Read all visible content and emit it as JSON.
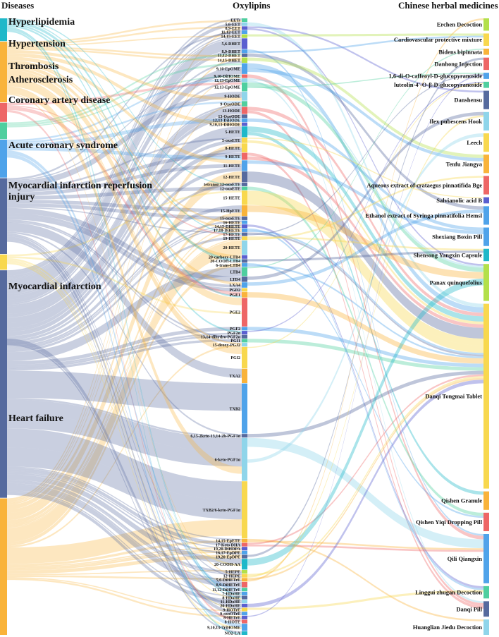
{
  "headers": {
    "diseases": "Diseases",
    "oxylipins": "Oxylipins",
    "medicines": "Chinese herbal medicines"
  },
  "colors": {
    "teal": "#1fb8c9",
    "orange": "#f9b33a",
    "red": "#ee6666",
    "green": "#4fcf9f",
    "blue": "#4fa3ea",
    "slate": "#566a9e",
    "yellow": "#f8d84e",
    "purple": "#5a5fd0",
    "lime": "#b3e04a",
    "lightblue": "#8fd5ea",
    "gray": "#7a879a"
  },
  "diseases": [
    {
      "name": "Hyperlipidemia",
      "color": "#1fb8c9",
      "weight": 3
    },
    {
      "name": "Hypertension",
      "color": "#f9b33a",
      "weight": 8
    },
    {
      "name": "Thrombosis",
      "color": "#ee6666",
      "weight": 2.5
    },
    {
      "name": "Atherosclerosis",
      "color": "#4fcf9f",
      "weight": 2.2
    },
    {
      "name": "Coronary artery disease",
      "color": "#4fa3ea",
      "weight": 5
    },
    {
      "name": "Acute coronary syndrome",
      "color": "#566a9e",
      "weight": 10
    },
    {
      "name": "Myocardial infarction reperfusion injury",
      "color": "#f8d84e",
      "weight": 2
    },
    {
      "name": "Myocardial infarction",
      "color": "#566a9e",
      "weight": 30
    },
    {
      "name": "Heart failure",
      "color": "#f9b33a",
      "weight": 18
    }
  ],
  "oxylipins": [
    {
      "name": "EETs",
      "color": "#4fcf9f",
      "weight": 1
    },
    {
      "name": "5,6-EET",
      "color": "#8fd5ea",
      "weight": 1
    },
    {
      "name": "8,9-EET",
      "color": "#5a5fd0",
      "weight": 1
    },
    {
      "name": "11,12-EET",
      "color": "#4fa3ea",
      "weight": 1
    },
    {
      "name": "14,15-EET",
      "color": "#b3e04a",
      "weight": 1
    },
    {
      "name": "5,6-DHET",
      "color": "#5a5fd0",
      "weight": 3
    },
    {
      "name": "8,9-DHET",
      "color": "#4fa3ea",
      "weight": 1
    },
    {
      "name": "11,12-DHET",
      "color": "#566a9e",
      "weight": 1
    },
    {
      "name": "14,15-DHET",
      "color": "#b3e04a",
      "weight": 1.5
    },
    {
      "name": "9,10-EpOME",
      "color": "#4fa3ea",
      "weight": 3
    },
    {
      "name": "9,10-DiHOME",
      "color": "#ee6666",
      "weight": 1
    },
    {
      "name": "12,13-EpOME",
      "color": "#8fd5ea",
      "weight": 1
    },
    {
      "name": "12,13-EpOME",
      "color": "#4fcf9f",
      "weight": 2.5
    },
    {
      "name": "9-HODE",
      "color": "#8fd5ea",
      "weight": 2.5
    },
    {
      "name": "9-OxoODE",
      "color": "#4fcf9f",
      "weight": 1.5
    },
    {
      "name": "13-HODE",
      "color": "#ee6666",
      "weight": 2
    },
    {
      "name": "13-OxoODE",
      "color": "#566a9e",
      "weight": 1
    },
    {
      "name": "12,13-DiHODE",
      "color": "#4fa3ea",
      "weight": 1
    },
    {
      "name": "9,10,13-DiHODE",
      "color": "#5a5fd0",
      "weight": 1
    },
    {
      "name": "5-HETE",
      "color": "#1fb8c9",
      "weight": 3
    },
    {
      "name": "5-oxoETE",
      "color": "#f8d84e",
      "weight": 1.5
    },
    {
      "name": "8-HETE",
      "color": "#f8d84e",
      "weight": 2.5
    },
    {
      "name": "9-HETE",
      "color": "#ee6666",
      "weight": 2
    },
    {
      "name": "11-HETE",
      "color": "#4fa3ea",
      "weight": 3
    },
    {
      "name": "12-HETE",
      "color": "#566a9e",
      "weight": 3
    },
    {
      "name": "tetranor 12-oxoETE",
      "color": "#566a9e",
      "weight": 1
    },
    {
      "name": "12-oxoETE",
      "color": "#4fcf9f",
      "weight": 1
    },
    {
      "name": "15-HETE",
      "color": "#f8d84e",
      "weight": 4
    },
    {
      "name": "15-HpETE",
      "color": "#f9b33a",
      "weight": 3
    },
    {
      "name": "15-oxoETE",
      "color": "#566a9e",
      "weight": 1
    },
    {
      "name": "16-HETE",
      "color": "#4fa3ea",
      "weight": 1
    },
    {
      "name": "14,15-DHETE",
      "color": "#5a5fd0",
      "weight": 1
    },
    {
      "name": "17,18-DiHETE",
      "color": "#4fa3ea",
      "weight": 1
    },
    {
      "name": "17-HETE",
      "color": "#566a9e",
      "weight": 1
    },
    {
      "name": "19-HETE",
      "color": "#f8d84e",
      "weight": 1
    },
    {
      "name": "20-HETE",
      "color": "#8fd5ea",
      "weight": 4
    },
    {
      "name": "20-carboxy-LTB4",
      "color": "#5a5fd0",
      "weight": 1
    },
    {
      "name": "20-COOH-LTB4",
      "color": "#566a9e",
      "weight": 1
    },
    {
      "name": "6-trans-LTB4",
      "color": "#4fa3ea",
      "weight": 1
    },
    {
      "name": "LTB4",
      "color": "#4fcf9f",
      "weight": 2.5
    },
    {
      "name": "LTD4",
      "color": "#566a9e",
      "weight": 1.5
    },
    {
      "name": "LXA4",
      "color": "#4fa3ea",
      "weight": 1.5
    },
    {
      "name": "PGD2",
      "color": "#f8d84e",
      "weight": 1
    },
    {
      "name": "PGE1",
      "color": "#f9b33a",
      "weight": 1.5
    },
    {
      "name": "PGE2",
      "color": "#ee6666",
      "weight": 8
    },
    {
      "name": "PGF2",
      "color": "#4fa3ea",
      "weight": 1
    },
    {
      "name": "PGF2α",
      "color": "#5a5fd0",
      "weight": 1
    },
    {
      "name": "13,14-dihydro-PGF2α",
      "color": "#566a9e",
      "weight": 1
    },
    {
      "name": "PGI1",
      "color": "#4fcf9f",
      "weight": 1
    },
    {
      "name": "15-deoxy-PGJ2",
      "color": "#8fd5ea",
      "weight": 1
    },
    {
      "name": "PGI2",
      "color": "#f8d84e",
      "weight": 6
    },
    {
      "name": "TXA2",
      "color": "#f9b33a",
      "weight": 4
    },
    {
      "name": "TXB2",
      "color": "#4fa3ea",
      "weight": 14
    },
    {
      "name": "6,15-2keto-13,14-2h-PGF1α",
      "color": "#566a9e",
      "weight": 1
    },
    {
      "name": "6-keto-PGF1α",
      "color": "#8fd5ea",
      "weight": 12
    },
    {
      "name": "TXB2/6-keto-PGF1α",
      "color": "#f8d84e",
      "weight": 16
    },
    {
      "name": "14,15-EpETE",
      "color": "#f9b33a",
      "weight": 1
    },
    {
      "name": "17-Keto DHA",
      "color": "#ee6666",
      "weight": 1
    },
    {
      "name": "19,20-DiHDPA",
      "color": "#5a5fd0",
      "weight": 1
    },
    {
      "name": "16,17-EpDPE",
      "color": "#4fa3ea",
      "weight": 1
    },
    {
      "name": "19,20-EpDPE",
      "color": "#566a9e",
      "weight": 1
    },
    {
      "name": "20-COOH-AA",
      "color": "#1fb8c9",
      "weight": 3
    },
    {
      "name": "5-HEPE",
      "color": "#b3e04a",
      "weight": 1
    },
    {
      "name": "12-HEPE",
      "color": "#f8d84e",
      "weight": 1
    },
    {
      "name": "5,6-DiHETrE",
      "color": "#f9b33a",
      "weight": 1
    },
    {
      "name": "8,9-DiHETrE",
      "color": "#ee6666",
      "weight": 1.5
    },
    {
      "name": "11,12-DiHETrE",
      "color": "#4fcf9f",
      "weight": 1
    },
    {
      "name": "7-HDoHE",
      "color": "#4fa3ea",
      "weight": 1
    },
    {
      "name": "8-HDoHE",
      "color": "#566a9e",
      "weight": 1
    },
    {
      "name": "11-HDoHE",
      "color": "#8fd5ea",
      "weight": 1
    },
    {
      "name": "20-HDoHE",
      "color": "#5a5fd0",
      "weight": 1
    },
    {
      "name": "9-HOTrE",
      "color": "#f8d84e",
      "weight": 1
    },
    {
      "name": "9-oxoOTrE",
      "color": "#4fa3ea",
      "weight": 1
    },
    {
      "name": "8-HETrE",
      "color": "#5a5fd0",
      "weight": 1
    },
    {
      "name": "8-HOTE",
      "color": "#ee6666",
      "weight": 1
    },
    {
      "name": "9,10,13-TriHOME",
      "color": "#4fa3ea",
      "weight": 2
    },
    {
      "name": "NO2-LA",
      "color": "#1fb8c9",
      "weight": 1
    }
  ],
  "medicines": [
    {
      "name": "Erchen Decoction",
      "color": "#b3e04a",
      "weight": 2
    },
    {
      "name": "Cardiovascular protective mixture",
      "color": "#f8d84e",
      "weight": 2
    },
    {
      "name": "Bidens bipinnata",
      "color": "#f9b33a",
      "weight": 1
    },
    {
      "name": "Danhong Injection",
      "color": "#ee6666",
      "weight": 2
    },
    {
      "name": "1,6-di-O-caffeoyl-D-glucopyranoside",
      "color": "#4fa3ea",
      "weight": 1
    },
    {
      "name": "luteolin-4'-O-β-D-glucopyranoside",
      "color": "#4fcf9f",
      "weight": 1
    },
    {
      "name": "Danshensu",
      "color": "#566a9e",
      "weight": 3
    },
    {
      "name": "Ilex pubescens Hook",
      "color": "#8fd5ea",
      "weight": 3
    },
    {
      "name": "Leech",
      "color": "#f8d84e",
      "weight": 3
    },
    {
      "name": "Tenfu Jiangya",
      "color": "#f9b33a",
      "weight": 3
    },
    {
      "name": "Aqueous extract of crataegus pinnatifida Bge",
      "color": "#ee6666",
      "weight": 3
    },
    {
      "name": "Salvianolic acid B",
      "color": "#5a5fd0",
      "weight": 1
    },
    {
      "name": "Ethanol extract of Syringa pinnatifolia Hemsl",
      "color": "#4fa3ea",
      "weight": 3
    },
    {
      "name": "Shexiang Boxin Pill",
      "color": "#4fa3ea",
      "weight": 3
    },
    {
      "name": "Shensong Yangxin Capsule",
      "color": "#1fb8c9",
      "weight": 2
    },
    {
      "name": "Panax quinquefolius",
      "color": "#b3e04a",
      "weight": 6
    },
    {
      "name": "Danqi Tongmai Tablet",
      "color": "#f8d84e",
      "weight": 30
    },
    {
      "name": "Qishen Granule",
      "color": "#f9b33a",
      "weight": 3
    },
    {
      "name": "Qishen Yiqi Dropping Pill",
      "color": "#ee6666",
      "weight": 3
    },
    {
      "name": "Qili Qiangxin",
      "color": "#4fa3ea",
      "weight": 8
    },
    {
      "name": "Linggui zhugan Decoction",
      "color": "#4fcf9f",
      "weight": 2
    },
    {
      "name": "Danqi Pill",
      "color": "#566a9e",
      "weight": 2.5
    },
    {
      "name": "Huanglian Jiedu Decoction",
      "color": "#8fd5ea",
      "weight": 2.5
    }
  ]
}
